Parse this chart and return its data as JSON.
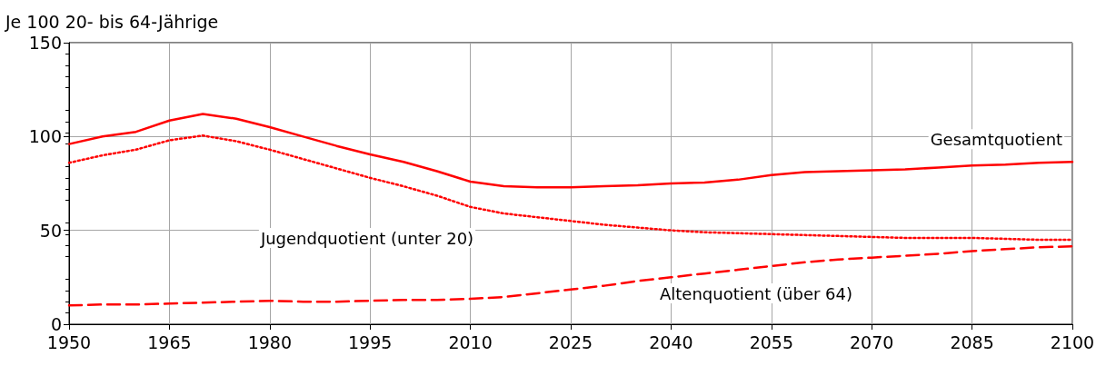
{
  "chart_data": {
    "type": "line",
    "ylabel": "Je 100 20- bis 64-Jährige",
    "x": [
      1950,
      1955,
      1960,
      1965,
      1970,
      1975,
      1980,
      1985,
      1990,
      1995,
      2000,
      2005,
      2010,
      2015,
      2020,
      2025,
      2030,
      2035,
      2040,
      2045,
      2050,
      2055,
      2060,
      2065,
      2070,
      2075,
      2080,
      2085,
      2090,
      2095,
      2100
    ],
    "xlim": [
      1950,
      2100
    ],
    "xticks": [
      1950,
      1965,
      1980,
      1995,
      2010,
      2025,
      2040,
      2055,
      2070,
      2085,
      2100
    ],
    "ylim": [
      0,
      150
    ],
    "yticks": [
      0,
      50,
      100,
      150
    ],
    "grid": true,
    "legend": false,
    "marker": "none",
    "series": [
      {
        "name": "Gesamtquotient",
        "color": "#ff0000",
        "line_style": "solid",
        "values": [
          96,
          100,
          102.5,
          108.5,
          112,
          109.5,
          105,
          100,
          95,
          90.5,
          86.5,
          81.5,
          76,
          73.5,
          73,
          73,
          73.5,
          74,
          75,
          75.5,
          77,
          79.5,
          81,
          81.5,
          82,
          82.5,
          83.5,
          84.5,
          85,
          86,
          86.5
        ]
      },
      {
        "name": "Jugendquotient (unter 20)",
        "color": "#ff0000",
        "line_style": "dotted",
        "values": [
          86,
          90,
          93,
          98,
          100.5,
          97.5,
          93,
          88,
          83,
          78,
          73.5,
          68.5,
          62.5,
          59,
          57,
          55,
          53,
          51.5,
          50,
          49,
          48.5,
          48,
          47.5,
          47,
          46.5,
          46,
          46,
          46,
          45.5,
          45,
          45
        ]
      },
      {
        "name": "Altenquotient (über 64)",
        "color": "#ff0000",
        "line_style": "dashed",
        "values": [
          10,
          10.5,
          10.5,
          11,
          11.5,
          12,
          12.5,
          12,
          12,
          12.5,
          13,
          13,
          13.5,
          14.5,
          16.5,
          18.5,
          20.5,
          23,
          25,
          27,
          29,
          31,
          33,
          34.5,
          35.5,
          36.5,
          37.5,
          39,
          40,
          41,
          41.5
        ]
      }
    ]
  }
}
